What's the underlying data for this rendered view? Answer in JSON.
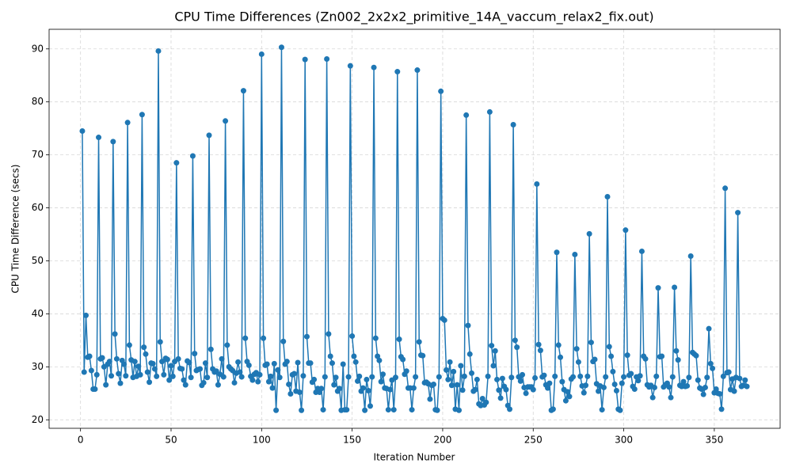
{
  "chart_data": {
    "type": "line",
    "title": "CPU Time Differences (Zn002_2x2x2_primitive_14A_vaccum_relax2_fix.out)",
    "x_label": "Iteration Number",
    "y_label": "CPU Time Difference (secs)",
    "color": "#1f77b4",
    "grid": true,
    "markers": true,
    "xlim": [
      -17.35,
      386.35
    ],
    "ylim": [
      18.4,
      93.7
    ],
    "xticks": [
      0,
      50,
      100,
      150,
      200,
      250,
      300,
      350
    ],
    "yticks": [
      20,
      30,
      40,
      50,
      60,
      70,
      80,
      90
    ],
    "x": [
      1,
      2,
      3,
      4,
      5,
      6,
      7,
      8,
      9,
      10,
      11,
      12,
      13,
      14,
      15,
      16,
      17,
      18,
      19,
      20,
      21,
      22,
      23,
      24,
      25,
      26,
      27,
      28,
      29,
      30,
      31,
      32,
      33,
      34,
      35,
      36,
      37,
      38,
      39,
      40,
      41,
      42,
      43,
      44,
      45,
      46,
      47,
      48,
      49,
      50,
      51,
      52,
      53,
      54,
      55,
      56,
      57,
      58,
      59,
      60,
      61,
      62,
      63,
      64,
      65,
      66,
      67,
      68,
      69,
      70,
      71,
      72,
      73,
      74,
      75,
      76,
      77,
      78,
      79,
      80,
      81,
      82,
      83,
      84,
      85,
      86,
      87,
      88,
      89,
      90,
      91,
      92,
      93,
      94,
      95,
      96,
      97,
      98,
      99,
      100,
      101,
      102,
      103,
      104,
      105,
      106,
      107,
      108,
      109,
      110,
      111,
      112,
      113,
      114,
      115,
      116,
      117,
      118,
      119,
      120,
      121,
      122,
      123,
      124,
      125,
      126,
      127,
      128,
      129,
      130,
      131,
      132,
      133,
      134,
      135,
      136,
      137,
      138,
      139,
      140,
      141,
      142,
      143,
      144,
      145,
      146,
      147,
      148,
      149,
      150,
      151,
      152,
      153,
      154,
      155,
      156,
      157,
      158,
      159,
      160,
      161,
      162,
      163,
      164,
      165,
      166,
      167,
      168,
      169,
      170,
      171,
      172,
      173,
      174,
      175,
      176,
      177,
      178,
      179,
      180,
      181,
      182,
      183,
      184,
      185,
      186,
      187,
      188,
      189,
      190,
      191,
      192,
      193,
      194,
      195,
      196,
      197,
      198,
      199,
      200,
      201,
      202,
      203,
      204,
      205,
      206,
      207,
      208,
      209,
      210,
      211,
      212,
      213,
      214,
      215,
      216,
      217,
      218,
      219,
      220,
      221,
      222,
      223,
      224,
      225,
      226,
      227,
      228,
      229,
      230,
      231,
      232,
      233,
      234,
      235,
      236,
      237,
      238,
      239,
      240,
      241,
      242,
      243,
      244,
      245,
      246,
      247,
      248,
      249,
      250,
      251,
      252,
      253,
      254,
      255,
      256,
      257,
      258,
      259,
      260,
      261,
      262,
      263,
      264,
      265,
      266,
      267,
      268,
      269,
      270,
      271,
      272,
      273,
      274,
      275,
      276,
      277,
      278,
      279,
      280,
      281,
      282,
      283,
      284,
      285,
      286,
      287,
      288,
      289,
      290,
      291,
      292,
      293,
      294,
      295,
      296,
      297,
      298,
      299,
      300,
      301,
      302,
      303,
      304,
      305,
      306,
      307,
      308,
      309,
      310,
      311,
      312,
      313,
      314,
      315,
      316,
      317,
      318,
      319,
      320,
      321,
      322,
      323,
      324,
      325,
      326,
      327,
      328,
      329,
      330,
      331,
      332,
      333,
      334,
      335,
      336,
      337,
      338,
      339,
      340,
      341,
      342,
      343,
      344,
      345,
      346,
      347,
      348,
      349,
      350,
      351,
      352,
      353,
      354,
      355,
      356,
      357,
      358,
      359,
      360,
      361,
      362,
      363,
      364,
      365,
      366,
      367,
      368
    ],
    "values": [
      74.5,
      29,
      39.7,
      31.8,
      32,
      29.3,
      25.8,
      25.8,
      28.5,
      73.3,
      31.5,
      31.7,
      30,
      26.6,
      30.5,
      31,
      28.3,
      72.5,
      36.2,
      31.5,
      28.7,
      26.9,
      31.2,
      30.5,
      28.3,
      76.1,
      34.1,
      31.3,
      28,
      31,
      28.2,
      30.1,
      28.5,
      77.6,
      33.7,
      32.4,
      29,
      27.1,
      30.7,
      30.6,
      29.6,
      28.2,
      89.6,
      34.7,
      31,
      28.5,
      31.6,
      31.4,
      27.5,
      30.2,
      28.2,
      31,
      68.5,
      31.5,
      29.7,
      29.6,
      27.5,
      26.6,
      31.1,
      30.8,
      28,
      69.8,
      32.5,
      29.3,
      29.5,
      29.6,
      26.5,
      27,
      30.7,
      28,
      73.7,
      33.3,
      29.6,
      29,
      29.2,
      26.6,
      28.6,
      31.5,
      28.1,
      76.4,
      34.1,
      30,
      29.6,
      29.3,
      27,
      28.8,
      30.9,
      29,
      28.1,
      82.1,
      35.4,
      31,
      30.3,
      28.2,
      27.5,
      28.6,
      28.9,
      27.2,
      28.5,
      89,
      35.4,
      30.3,
      30.5,
      27.2,
      28.2,
      26,
      30.6,
      21.8,
      29.4,
      28,
      90.3,
      34.8,
      30.5,
      31,
      26.7,
      24.9,
      28.5,
      28.7,
      25.4,
      30.8,
      25.2,
      21.8,
      28.3,
      88,
      35.7,
      30.7,
      30.7,
      27.1,
      27.6,
      25.2,
      25.9,
      25.2,
      25.9,
      21.9,
      28.1,
      88.1,
      36.2,
      32,
      30.7,
      26.6,
      28,
      25.4,
      25.9,
      21.8,
      30.5,
      21.9,
      21.9,
      28.1,
      86.8,
      35.8,
      32,
      30.9,
      27.3,
      28.2,
      25.4,
      26,
      21.8,
      27.6,
      25.5,
      22.6,
      28.1,
      86.5,
      35.4,
      32,
      31.2,
      27.2,
      28.6,
      26,
      25.9,
      21.9,
      25.7,
      27.5,
      21.9,
      28,
      85.7,
      35.2,
      31.9,
      31.4,
      28.6,
      29.2,
      26,
      26,
      21.9,
      26,
      28.1,
      86,
      34.7,
      32.2,
      32.1,
      27,
      27.1,
      26.8,
      23.9,
      26.5,
      26.7,
      21.9,
      21.8,
      28.1,
      82,
      39.1,
      38.8,
      29.4,
      27.6,
      30.9,
      26.5,
      29.1,
      22,
      26.6,
      21.8,
      30.2,
      25.6,
      28.2,
      77.5,
      37.8,
      32.4,
      28.8,
      25.4,
      25.7,
      27.6,
      23,
      22.7,
      24,
      22.8,
      23.3,
      28.2,
      78.1,
      34,
      30.2,
      33,
      27.6,
      25.6,
      24.1,
      27.8,
      26.3,
      25.7,
      22.7,
      22,
      28,
      75.7,
      35,
      33.7,
      28.1,
      27.3,
      28.5,
      26.1,
      25,
      26.2,
      26.2,
      26.2,
      25.7,
      27.9,
      64.5,
      34.2,
      33.1,
      28.1,
      28.4,
      26.6,
      26,
      26.9,
      21.8,
      22,
      28.2,
      51.6,
      34.1,
      31.8,
      27.2,
      25.7,
      23.6,
      25.3,
      24.4,
      27.7,
      28.1,
      51.2,
      33.4,
      30.9,
      28.2,
      26.4,
      25.1,
      26.5,
      28.2,
      55.1,
      34.6,
      31,
      31.4,
      26.8,
      25.4,
      26.4,
      21.9,
      26.1,
      28.1,
      62.1,
      33.8,
      32,
      29.1,
      26.7,
      25.5,
      22,
      21.8,
      26.9,
      28.1,
      55.8,
      32.2,
      28.4,
      28.7,
      26.3,
      25.8,
      28.1,
      27.4,
      28.3,
      51.8,
      32,
      31.5,
      26.6,
      26.2,
      26.5,
      24.2,
      26.1,
      28.2,
      44.9,
      31.9,
      32,
      26.2,
      26.6,
      26.9,
      26.2,
      24.2,
      28.1,
      45,
      33,
      31.3,
      26.5,
      26.3,
      27.2,
      26.3,
      26.4,
      28,
      50.9,
      32.7,
      32.4,
      32.1,
      27.5,
      26,
      25.8,
      24.8,
      26.1,
      28,
      37.2,
      30.6,
      29.7,
      25.1,
      25.8,
      25,
      24.9,
      22,
      28.2,
      63.7,
      28.9,
      29,
      25.7,
      27.7,
      25.4,
      28,
      59.1,
      27.8,
      26.3,
      26.5,
      27.5,
      26.3
    ]
  }
}
